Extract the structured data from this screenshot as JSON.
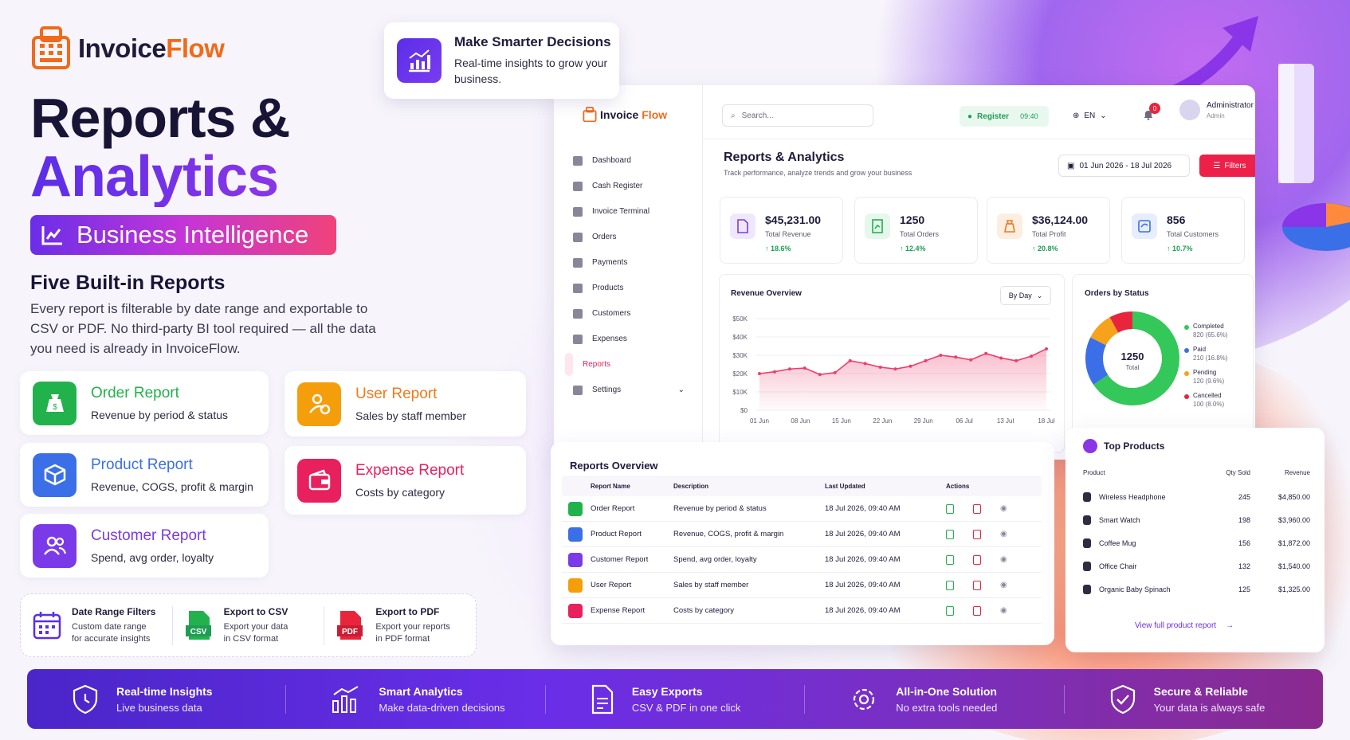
{
  "brand": {
    "name_a": "Invoice",
    "name_b": "Flow"
  },
  "hero": {
    "line1": "Reports &",
    "line2": "Analytics",
    "badge": "Business Intelligence",
    "subtitle": "Five Built-in Reports",
    "description": "Every report is filterable by date range and exportable to CSV or PDF. No third-party BI tool required — all the data you need is already in InvoiceFlow."
  },
  "report_cards": [
    {
      "title": "Order Report",
      "desc": "Revenue by period & status",
      "color": "#22b24c",
      "icon": "money-bag-icon"
    },
    {
      "title": "User Report",
      "desc": "Sales by staff member",
      "color": "#f59e0b",
      "icon": "user-money-icon"
    },
    {
      "title": "Product Report",
      "desc": "Revenue, COGS, profit & margin",
      "color": "#3b6fe8",
      "icon": "box-icon"
    },
    {
      "title": "Expense Report",
      "desc": "Costs by category",
      "color": "#e8205e",
      "icon": "wallet-icon"
    },
    {
      "title": "Customer Report",
      "desc": "Spend, avg order, loyalty",
      "color": "#7b3ae8",
      "icon": "users-icon"
    }
  ],
  "features": [
    {
      "title": "Date Range Filters",
      "desc1": "Custom date range",
      "desc2": "for accurate insights",
      "icon": "calendar-icon"
    },
    {
      "title": "Export to CSV",
      "desc1": "Export your data",
      "desc2": "in CSV format",
      "icon": "csv-file-icon",
      "badge": "CSV"
    },
    {
      "title": "Export to PDF",
      "desc1": "Export your reports",
      "desc2": "in PDF format",
      "icon": "pdf-file-icon",
      "badge": "PDF"
    }
  ],
  "popup": {
    "title": "Make Smarter Decisions",
    "desc": "Real-time insights to grow your business."
  },
  "app": {
    "logo_a": "Invoice",
    "logo_b": "Flow",
    "nav": [
      "Dashboard",
      "Cash Register",
      "Invoice Terminal",
      "Orders",
      "Payments",
      "Products",
      "Customers",
      "Expenses",
      "Reports",
      "Settings"
    ],
    "search_placeholder": "Search...",
    "register": "Register",
    "register_time": "09:40",
    "lang": "EN",
    "notif_count": "0",
    "user_name": "Administrator",
    "user_role": "Admin",
    "page_title": "Reports & Analytics",
    "page_sub": "Track performance, analyze trends and grow your business",
    "date_range": "01 Jun 2026 - 18 Jul 2026",
    "filters": "Filters",
    "stats": [
      {
        "value": "$45,231.00",
        "label": "Total Revenue",
        "change": "↑ 18.6%",
        "color": "#7b3ae8",
        "bg": "#efe8fd"
      },
      {
        "value": "1250",
        "label": "Total Orders",
        "change": "↑ 12.4%",
        "color": "#22b24c",
        "bg": "#e6f7ec"
      },
      {
        "value": "$36,124.00",
        "label": "Total Profit",
        "change": "↑ 20.8%",
        "color": "#f07a1a",
        "bg": "#fdeee2"
      },
      {
        "value": "856",
        "label": "Total Customers",
        "change": "↑ 10.7%",
        "color": "#3b6fe8",
        "bg": "#e6edfd"
      }
    ],
    "revenue_title": "Revenue Overview",
    "by_day": "By Day",
    "orders_title": "Orders by Status",
    "orders_total": "1250",
    "orders_total_label": "Total"
  },
  "chart_data": [
    {
      "type": "area",
      "title": "Revenue Overview",
      "x": [
        "01 Jun",
        "04 Jun",
        "08 Jun",
        "11 Jun",
        "13 Jun",
        "15 Jun",
        "18 Jun",
        "20 Jun",
        "22 Jun",
        "24 Jun",
        "27 Jun",
        "29 Jun",
        "02 Jul",
        "04 Jul",
        "06 Jul",
        "08 Jul",
        "11 Jul",
        "13 Jul",
        "15 Jul",
        "18 Jul"
      ],
      "xticks": [
        "01 Jun",
        "08 Jun",
        "15 Jun",
        "22 Jun",
        "29 Jun",
        "06 Jul",
        "13 Jul",
        "18 Jul"
      ],
      "values": [
        20000,
        21000,
        22500,
        23000,
        19500,
        20500,
        27000,
        25500,
        23500,
        22500,
        24000,
        27000,
        30000,
        29000,
        27500,
        31000,
        28500,
        27000,
        29500,
        33500
      ],
      "yticks": [
        "$0",
        "$10K",
        "$20K",
        "$30K",
        "$40K",
        "$50K"
      ],
      "ylim": [
        0,
        50000
      ],
      "color": "#ec3f6d"
    },
    {
      "type": "pie",
      "title": "Orders by Status",
      "categories": [
        "Completed",
        "Paid",
        "Pending",
        "Cancelled"
      ],
      "values": [
        820,
        210,
        120,
        100
      ],
      "percent_labels": [
        "820 (65.6%)",
        "210 (16.8%)",
        "120 (9.6%)",
        "100 (8.0%)"
      ],
      "colors": [
        "#34c759",
        "#3b6fe8",
        "#f7a21b",
        "#e8253c"
      ]
    }
  ],
  "reports_overview": {
    "title": "Reports Overview",
    "headers": [
      "Report Name",
      "Description",
      "Last Updated",
      "Actions"
    ],
    "rows": [
      {
        "name": "Order Report",
        "desc": "Revenue by period & status",
        "updated": "18 Jul 2026, 09:40 AM",
        "color": "#22b24c"
      },
      {
        "name": "Product Report",
        "desc": "Revenue, COGS, profit & margin",
        "updated": "18 Jul 2026, 09:40 AM",
        "color": "#3b6fe8"
      },
      {
        "name": "Customer Report",
        "desc": "Spend, avg order, loyalty",
        "updated": "18 Jul 2026, 09:40 AM",
        "color": "#7b3ae8"
      },
      {
        "name": "User Report",
        "desc": "Sales by staff member",
        "updated": "18 Jul 2026, 09:40 AM",
        "color": "#f59e0b"
      },
      {
        "name": "Expense Report",
        "desc": "Costs by category",
        "updated": "18 Jul 2026, 09:40 AM",
        "color": "#e8205e"
      }
    ]
  },
  "top_products": {
    "title": "Top Products",
    "headers": [
      "Product",
      "Qty Sold",
      "Revenue"
    ],
    "rows": [
      {
        "name": "Wireless Headphone",
        "qty": "245",
        "rev": "$4,850.00"
      },
      {
        "name": "Smart Watch",
        "qty": "198",
        "rev": "$3,960.00"
      },
      {
        "name": "Coffee Mug",
        "qty": "156",
        "rev": "$1,872.00"
      },
      {
        "name": "Office Chair",
        "qty": "132",
        "rev": "$1,540.00"
      },
      {
        "name": "Organic Baby Spinach",
        "qty": "125",
        "rev": "$1,325.00"
      }
    ],
    "link": "View full product report",
    "arrow": "→"
  },
  "banner": [
    {
      "title": "Real-time Insights",
      "desc": "Live business data",
      "icon": "shield-clock-icon"
    },
    {
      "title": "Smart Analytics",
      "desc": "Make data-driven decisions",
      "icon": "analytics-icon"
    },
    {
      "title": "Easy Exports",
      "desc": "CSV & PDF in one click",
      "icon": "document-icon"
    },
    {
      "title": "All-in-One Solution",
      "desc": "No extra tools needed",
      "icon": "gear-cycle-icon"
    },
    {
      "title": "Secure & Reliable",
      "desc": "Your data is always safe",
      "icon": "shield-check-icon"
    }
  ]
}
